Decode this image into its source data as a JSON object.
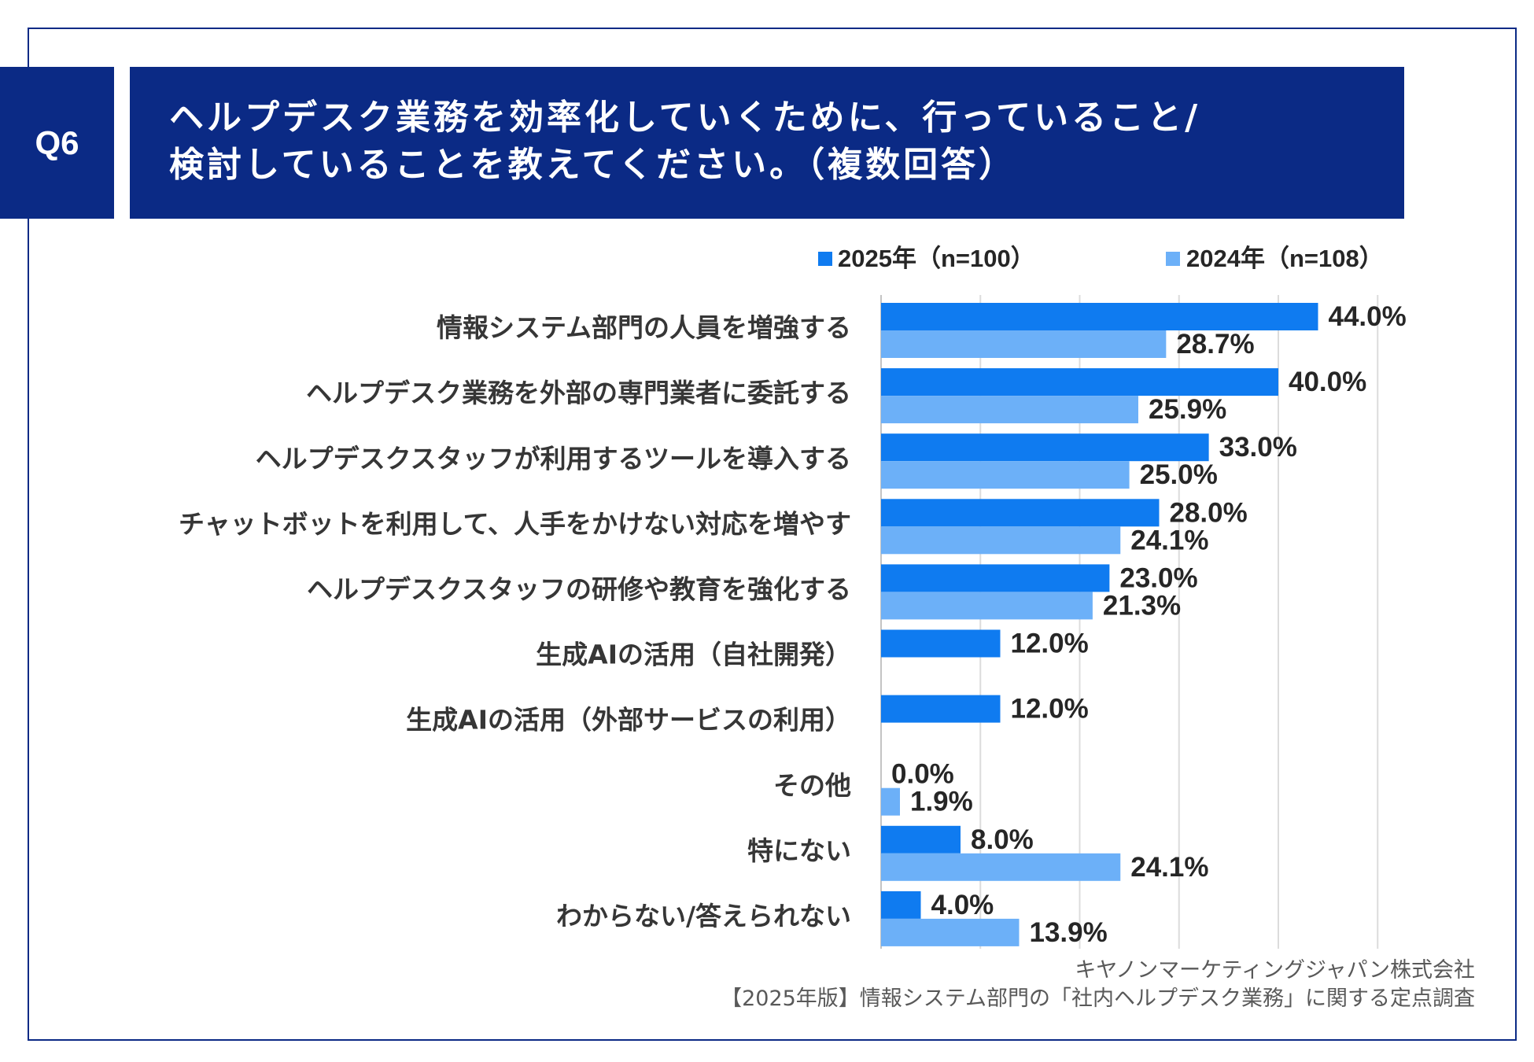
{
  "question": {
    "badge": "Q6",
    "title_line1": "ヘルプデスク業務を効率化していくために、行っていること/",
    "title_line2": "検討していることを教えてください。（複数回答）"
  },
  "colors": {
    "navy": "#0b2a85",
    "grid": "#dcdcdc",
    "axis": "#c4c4c4",
    "label_text": "#363636",
    "value_text": "#262626"
  },
  "chart_data": {
    "type": "bar",
    "orientation": "horizontal",
    "categories": [
      "情報システム部門の人員を増強する",
      "ヘルプデスク業務を外部の専門業者に委託する",
      "ヘルプデスクスタッフが利用するツールを導入する",
      "チャットボットを利用して、人手をかけない対応を増やす",
      "ヘルプデスクスタッフの研修や教育を強化する",
      "生成AIの活用（自社開発）",
      "生成AIの活用（外部サービスの利用）",
      "その他",
      "特にない",
      "わからない/答えられない"
    ],
    "series": [
      {
        "name": "2025年（n=100）",
        "color": "#0f7bf0",
        "values": [
          44.0,
          40.0,
          33.0,
          28.0,
          23.0,
          12.0,
          12.0,
          0.0,
          8.0,
          4.0
        ]
      },
      {
        "name": "2024年（n=108）",
        "color": "#6cb0f8",
        "values": [
          28.7,
          25.9,
          25.0,
          24.1,
          21.3,
          null,
          null,
          1.9,
          24.1,
          13.9
        ]
      }
    ],
    "value_unit": "%",
    "xlim": [
      0,
      50
    ],
    "grid": true,
    "grid_interval": 10,
    "legend_position": "top"
  },
  "footer": {
    "company": "キヤノンマーケティングジャパン株式会社",
    "survey": "【2025年版】情報システム部門の「社内ヘルプデスク業務」に関する定点調査"
  }
}
